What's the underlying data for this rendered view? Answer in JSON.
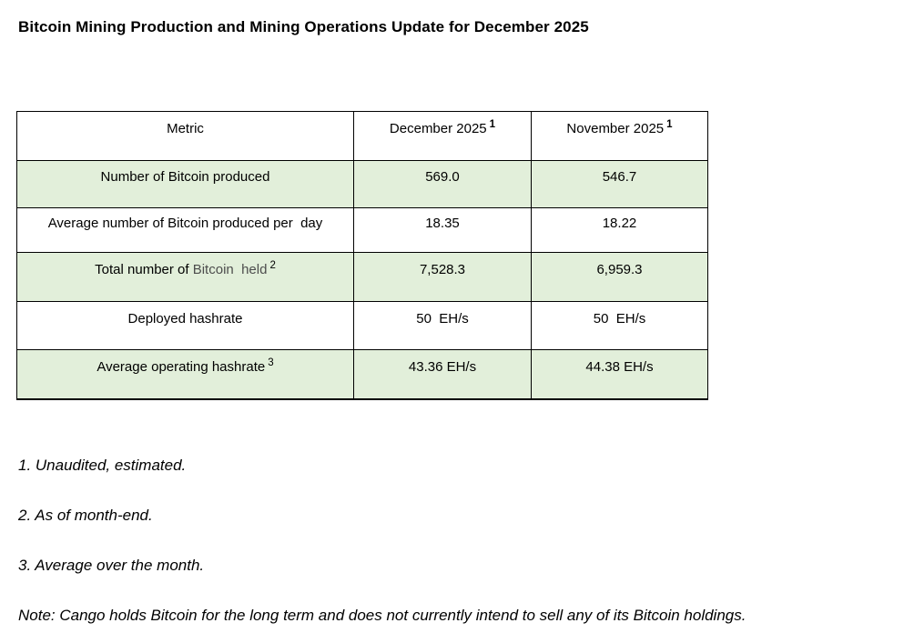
{
  "page": {
    "title": "Bitcoin Mining Production and Mining Operations Update for December 2025"
  },
  "table": {
    "headers": {
      "metric": "Metric",
      "col1": "December 2025",
      "col1_sup": "1",
      "col2": "November 2025",
      "col2_sup": "1"
    },
    "rows": [
      {
        "prefix": "Number of Bitcoin produced",
        "muted": "",
        "sup": "",
        "dec": "569.0",
        "nov": "546.7"
      },
      {
        "prefix": "Average number of Bitcoin produced per  day",
        "muted": "",
        "sup": "",
        "dec": "18.35",
        "nov": "18.22"
      },
      {
        "prefix": "Total number of ",
        "muted": "Bitcoin  held",
        "sup": "2",
        "dec": "7,528.3",
        "nov": "6,959.3"
      },
      {
        "prefix": "Deployed hashrate",
        "muted": "",
        "sup": "",
        "dec": "50  EH/s",
        "nov": "50  EH/s"
      },
      {
        "prefix": "Average operating hashrate",
        "muted": "",
        "sup": "3",
        "dec": "43.36 EH/s",
        "nov": "44.38 EH/s"
      }
    ]
  },
  "footnotes": [
    "1. Unaudited, estimated.",
    "2. As of month-end.",
    "3. Average over the month."
  ],
  "note": "Note: Cango holds Bitcoin for the long term and does not currently intend to sell any of its Bitcoin holdings.",
  "colors": {
    "row_shade": "#e2efda",
    "border": "#000000",
    "muted_text": "#4d4d4d",
    "text": "#000000"
  }
}
